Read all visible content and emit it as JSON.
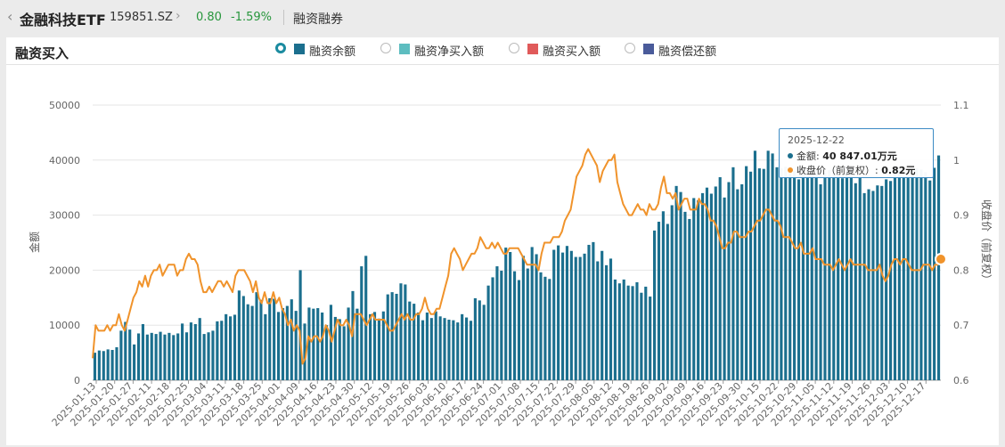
{
  "header": {
    "back_icon": "‹",
    "fund_name": "金融科技ETF",
    "fund_code": "159851.SZ",
    "price": "0.80",
    "change_pct": "-1.59%",
    "margin_link": "融资融券",
    "up_down_color": "#27963c"
  },
  "panel": {
    "title": "融资买入"
  },
  "legend": [
    {
      "label": "融资余额",
      "color": "#1b6f8e",
      "selected": true
    },
    {
      "label": "融资净买入额",
      "color": "#5dbdc0",
      "selected": false
    },
    {
      "label": "融资买入额",
      "color": "#e05a5a",
      "selected": false
    },
    {
      "label": "融资偿还额",
      "color": "#4a5b9a",
      "selected": false
    }
  ],
  "tooltip": {
    "date": "2025-12-22",
    "amount_label": "金额: ",
    "amount_value": "40 847.01万元",
    "close_label": "收盘价（前复权）: ",
    "close_value": "0.82元",
    "amount_color": "#1b6f8e",
    "close_color": "#f0932b"
  },
  "chart_data": {
    "type": "bar+line",
    "left_axis": {
      "label": "金额",
      "ticks": [
        "0",
        "10000",
        "20000",
        "30000",
        "40000",
        "50000"
      ],
      "range": [
        0,
        50000
      ]
    },
    "right_axis": {
      "label": "收盘价（前复权）",
      "ticks": [
        "0.6",
        "0.7",
        "0.8",
        "0.9",
        "1",
        "1.1"
      ],
      "range": [
        0.6,
        1.1
      ]
    },
    "x_tick_labels": [
      "2025-01-13",
      "2025-01-20",
      "2025-01-27",
      "2025-02-11",
      "2025-02-18",
      "2025-02-25",
      "2025-03-04",
      "2025-03-11",
      "2025-03-18",
      "2025-03-25",
      "2025-04-01",
      "2025-04-09",
      "2025-04-16",
      "2025-04-23",
      "2025-04-30",
      "2025-05-12",
      "2025-05-19",
      "2025-05-26",
      "2025-06-03",
      "2025-06-10",
      "2025-06-17",
      "2025-06-24",
      "2025-07-01",
      "2025-07-08",
      "2025-07-15",
      "2025-07-22",
      "2025-07-29",
      "2025-08-05",
      "2025-08-12",
      "2025-08-19",
      "2025-08-26",
      "2025-09-02",
      "2025-09-09",
      "2025-09-16",
      "2025-09-23",
      "2025-09-30",
      "2025-10-15",
      "2025-10-22",
      "2025-10-29",
      "2025-11-05",
      "2025-11-12",
      "2025-11-19",
      "2025-11-26",
      "2025-12-03",
      "2025-12-10",
      "2025-12-17"
    ],
    "bar_color": "#1b6f8e",
    "line_color": "#f0932b",
    "series": [
      {
        "name": "融资余额",
        "unit": "万元",
        "values": [
          5000,
          5400,
          5300,
          5600,
          5500,
          6000,
          9000,
          10600,
          9200,
          6500,
          8500,
          10200,
          8300,
          8600,
          8400,
          8800,
          8300,
          8600,
          8200,
          8500,
          10300,
          8700,
          10500,
          10200,
          11300,
          8400,
          8700,
          9000,
          10700,
          10800,
          12000,
          11600,
          11900,
          16300,
          15300,
          13800,
          13500,
          16000,
          14600,
          12000,
          14900,
          14800,
          12400,
          13100,
          13500,
          14700,
          12600,
          20000,
          10300,
          13200,
          13000,
          13100,
          12300,
          10000,
          13700,
          11500,
          11100,
          9800,
          13200,
          16200,
          13000,
          20700,
          22600,
          12000,
          12400,
          11200,
          12500,
          15600,
          16000,
          15700,
          17600,
          17400,
          14300,
          13900,
          12300,
          10900,
          12300,
          11300,
          12500,
          11600,
          11300,
          11000,
          10900,
          10500,
          12000,
          11400,
          10800,
          14900,
          14500,
          13700,
          17200,
          18700,
          20700,
          19900,
          24100,
          23300,
          19800,
          18200,
          22600,
          20300,
          24200,
          22900,
          19600,
          18800,
          18400,
          23700,
          24500,
          23200,
          24400,
          23500,
          22400,
          22400,
          23000,
          24600,
          25100,
          21600,
          23500,
          20900,
          22100,
          18300,
          17600,
          18300,
          17200,
          17100,
          17800,
          15900,
          17000,
          15200,
          27200,
          28800,
          30700,
          28400,
          31800,
          35300,
          34200,
          30600,
          29300,
          33100,
          32700,
          34000,
          35000,
          33900,
          35200,
          36900,
          33200,
          36000,
          38700,
          34700,
          35600,
          38900,
          37900,
          41700,
          38500,
          38400,
          41700,
          41200,
          38700,
          38500,
          38800,
          37800,
          38000,
          36500,
          37200,
          36900,
          37600,
          37400,
          35600,
          37700,
          38200,
          38400,
          37900,
          36700,
          38600,
          38700,
          35800,
          36800,
          34000,
          34700,
          34400,
          35400,
          35300,
          36500,
          36200,
          37600,
          38300,
          37000,
          37300,
          37200,
          38500,
          38300,
          37800,
          36300,
          38600,
          40847
        ]
      },
      {
        "name": "收盘价（前复权）",
        "unit": "元",
        "values": [
          0.64,
          0.7,
          0.69,
          0.69,
          0.69,
          0.7,
          0.69,
          0.7,
          0.7,
          0.72,
          0.7,
          0.69,
          0.71,
          0.73,
          0.75,
          0.76,
          0.78,
          0.77,
          0.79,
          0.77,
          0.79,
          0.8,
          0.8,
          0.81,
          0.79,
          0.8,
          0.81,
          0.81,
          0.81,
          0.79,
          0.8,
          0.8,
          0.82,
          0.83,
          0.82,
          0.82,
          0.81,
          0.78,
          0.76,
          0.76,
          0.77,
          0.76,
          0.77,
          0.78,
          0.78,
          0.77,
          0.78,
          0.77,
          0.76,
          0.79,
          0.8,
          0.8,
          0.8,
          0.79,
          0.78,
          0.76,
          0.78,
          0.75,
          0.74,
          0.76,
          0.74,
          0.74,
          0.76,
          0.74,
          0.75,
          0.73,
          0.72,
          0.7,
          0.71,
          0.69,
          0.7,
          0.69,
          0.63,
          0.64,
          0.68,
          0.67,
          0.68,
          0.68,
          0.67,
          0.68,
          0.7,
          0.69,
          0.67,
          0.69,
          0.71,
          0.7,
          0.7,
          0.71,
          0.7,
          0.68,
          0.72,
          0.72,
          0.72,
          0.71,
          0.7,
          0.71,
          0.72,
          0.71,
          0.71,
          0.71,
          0.71,
          0.7,
          0.69,
          0.69,
          0.7,
          0.71,
          0.72,
          0.71,
          0.72,
          0.71,
          0.71,
          0.72,
          0.72,
          0.73,
          0.75,
          0.73,
          0.72,
          0.72,
          0.73,
          0.73,
          0.75,
          0.77,
          0.79,
          0.83,
          0.84,
          0.83,
          0.82,
          0.8,
          0.81,
          0.82,
          0.83,
          0.83,
          0.84,
          0.86,
          0.85,
          0.84,
          0.84,
          0.85,
          0.84,
          0.85,
          0.84,
          0.83,
          0.83,
          0.84,
          0.84,
          0.84,
          0.84,
          0.83,
          0.82,
          0.81,
          0.81,
          0.81,
          0.81,
          0.8,
          0.83,
          0.85,
          0.85,
          0.85,
          0.86,
          0.86,
          0.86,
          0.87,
          0.89,
          0.9,
          0.91,
          0.94,
          0.97,
          0.98,
          0.99,
          1.01,
          1.02,
          1.01,
          1.0,
          0.99,
          0.96,
          0.98,
          0.99,
          1.0,
          1.0,
          1.01,
          0.96,
          0.94,
          0.92,
          0.91,
          0.9,
          0.9,
          0.91,
          0.92,
          0.91,
          0.91,
          0.9,
          0.92,
          0.91,
          0.91,
          0.92,
          0.95,
          0.97,
          0.94,
          0.94,
          0.93,
          0.94,
          0.91,
          0.92,
          0.93,
          0.93,
          0.91,
          0.91,
          0.91,
          0.93,
          0.92,
          0.92,
          0.91,
          0.89,
          0.89,
          0.88,
          0.86,
          0.84,
          0.84,
          0.85,
          0.85,
          0.87,
          0.87,
          0.86,
          0.86,
          0.86,
          0.87,
          0.87,
          0.88,
          0.89,
          0.89,
          0.9,
          0.91,
          0.91,
          0.9,
          0.89,
          0.89,
          0.88,
          0.86,
          0.86,
          0.86,
          0.85,
          0.84,
          0.84,
          0.85,
          0.83,
          0.83,
          0.83,
          0.84,
          0.82,
          0.82,
          0.82,
          0.81,
          0.81,
          0.81,
          0.8,
          0.81,
          0.82,
          0.81,
          0.8,
          0.81,
          0.82,
          0.81,
          0.81,
          0.81,
          0.81,
          0.81,
          0.8,
          0.8,
          0.8,
          0.8,
          0.81,
          0.79,
          0.78,
          0.79,
          0.81,
          0.82,
          0.82,
          0.81,
          0.82,
          0.82,
          0.81,
          0.8,
          0.8,
          0.8,
          0.8,
          0.81,
          0.81,
          0.81,
          0.8,
          0.81,
          0.81,
          0.82
        ]
      }
    ]
  }
}
